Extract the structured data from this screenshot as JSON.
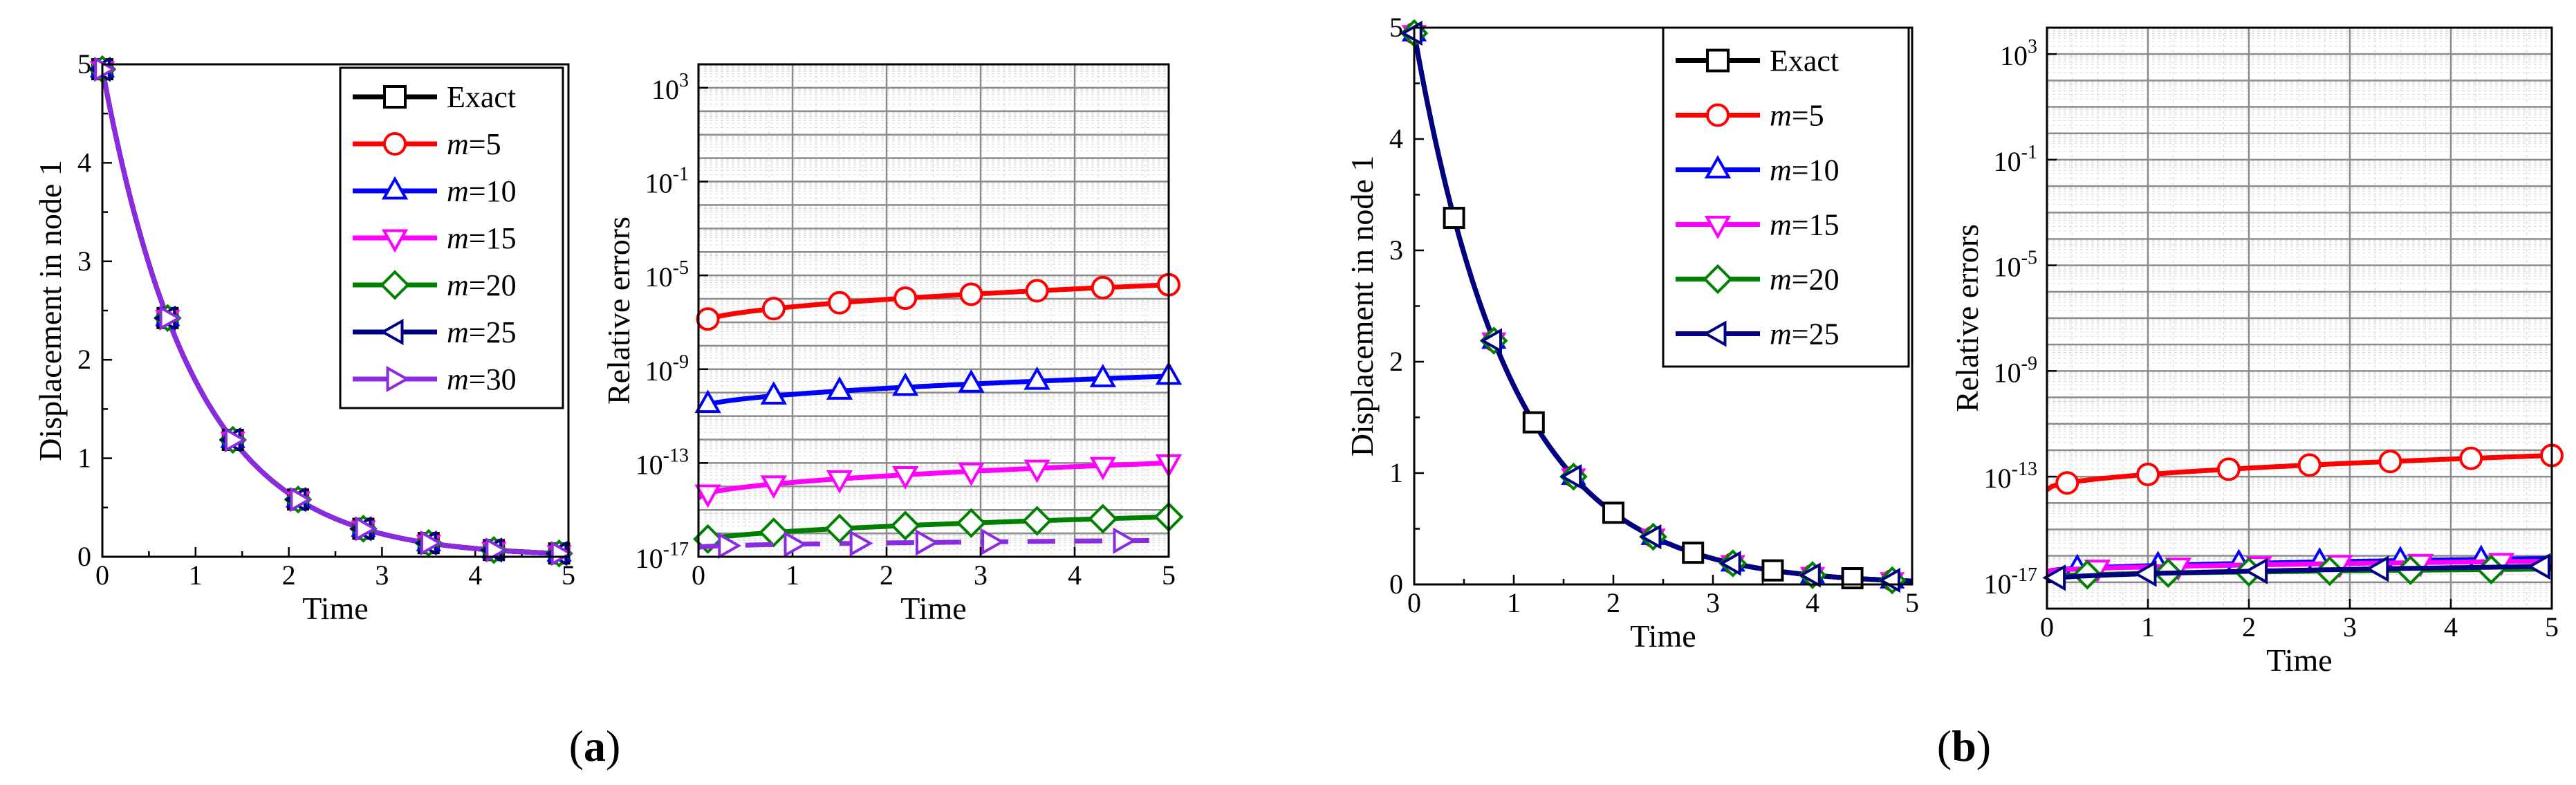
{
  "panels": [
    {
      "label_prefix": "(",
      "label_letter": "a",
      "label_suffix": ")",
      "displacement_chart": {
        "type": "line",
        "title": "",
        "xlabel": "Time",
        "ylabel": "Displacement in node 1",
        "xlim": [
          0,
          5
        ],
        "ylim": [
          0,
          5
        ],
        "xticks": [
          0,
          1,
          2,
          3,
          4,
          5
        ],
        "yticks": [
          0,
          1,
          2,
          3,
          4,
          5
        ],
        "legend_position": "top-right",
        "curve": "4.95*exp(-1.02*t)",
        "series": [
          {
            "name": "Exact",
            "color": "#000000",
            "marker": "square",
            "marker_x": [
              0,
              0.7,
              1.4,
              2.1,
              2.8,
              3.5,
              4.2,
              4.9
            ]
          },
          {
            "name": "m=5",
            "color": "#ff0000",
            "marker": "circle",
            "marker_x": [
              0,
              0.7,
              1.4,
              2.1,
              2.8,
              3.5,
              4.2,
              4.9
            ]
          },
          {
            "name": "m=10",
            "color": "#0000ff",
            "marker": "triangle-up",
            "marker_x": [
              0,
              0.7,
              1.4,
              2.1,
              2.8,
              3.5,
              4.2,
              4.9
            ]
          },
          {
            "name": "m=15",
            "color": "#ff00ff",
            "marker": "triangle-down",
            "marker_x": [
              0,
              0.7,
              1.4,
              2.1,
              2.8,
              3.5,
              4.2,
              4.9
            ]
          },
          {
            "name": "m=20",
            "color": "#008000",
            "marker": "diamond",
            "marker_x": [
              0,
              0.7,
              1.4,
              2.1,
              2.8,
              3.5,
              4.2,
              4.9
            ]
          },
          {
            "name": "m=25",
            "color": "#000080",
            "marker": "triangle-left",
            "marker_x": [
              0,
              0.7,
              1.4,
              2.1,
              2.8,
              3.5,
              4.2,
              4.9
            ]
          },
          {
            "name": "m=30",
            "color": "#8a2be2",
            "marker": "triangle-right",
            "marker_x": [
              0,
              0.7,
              1.4,
              2.1,
              2.8,
              3.5,
              4.2,
              4.9
            ]
          }
        ]
      },
      "error_chart": {
        "type": "line",
        "title": "",
        "xlabel": "Time",
        "ylabel": "Relative errors",
        "yscale": "log",
        "xlim": [
          0,
          5
        ],
        "ylim_exponent": [
          -17,
          4
        ],
        "xticks": [
          0,
          1,
          2,
          3,
          4,
          5
        ],
        "yticks_exponent": [
          -17,
          -13,
          -9,
          -5,
          -1,
          3
        ],
        "series": [
          {
            "name": "m=5",
            "color": "#ff0000",
            "marker": "circle",
            "exp_start": -7.1,
            "exp_end": -5.4,
            "marker_x": [
              0.1,
              0.8,
              1.5,
              2.2,
              2.9,
              3.6,
              4.3,
              5.0
            ],
            "style": "solid"
          },
          {
            "name": "m=10",
            "color": "#0000ff",
            "marker": "triangle-up",
            "exp_start": -10.7,
            "exp_end": -9.3,
            "marker_x": [
              0.1,
              0.8,
              1.5,
              2.2,
              2.9,
              3.6,
              4.3,
              5.0
            ],
            "style": "solid"
          },
          {
            "name": "m=15",
            "color": "#ff00ff",
            "marker": "triangle-down",
            "exp_start": -14.5,
            "exp_end": -13.0,
            "marker_x": [
              0.1,
              0.8,
              1.5,
              2.2,
              2.9,
              3.6,
              4.3,
              5.0
            ],
            "style": "solid"
          },
          {
            "name": "m=20",
            "color": "#008000",
            "marker": "diamond",
            "exp_start": -16.4,
            "exp_end": -15.3,
            "marker_x": [
              0.1,
              0.8,
              1.5,
              2.2,
              2.9,
              3.6,
              4.3,
              5.0
            ],
            "style": "solid"
          },
          {
            "name": "m=30",
            "color": "#8a2be2",
            "marker": "triangle-right",
            "exp_start": -16.6,
            "exp_end": -16.3,
            "marker_x": [
              0.3,
              1.0,
              1.7,
              2.4,
              3.1,
              4.5
            ],
            "style": "dashed"
          }
        ]
      }
    },
    {
      "label_prefix": "(",
      "label_letter": "b",
      "label_suffix": ")",
      "displacement_chart": {
        "type": "line",
        "title": "",
        "xlabel": "Time",
        "ylabel": "Displacement in node 1",
        "xlim": [
          0,
          5
        ],
        "ylim": [
          0,
          5
        ],
        "xticks": [
          0,
          1,
          2,
          3,
          4,
          5
        ],
        "yticks": [
          0,
          1,
          2,
          3,
          4,
          5
        ],
        "legend_position": "top-right",
        "curve": "4.95*exp(-1.02*t)",
        "series": [
          {
            "name": "Exact",
            "color": "#000000",
            "marker": "square",
            "marker_x": [
              0.4,
              1.2,
              2.0,
              2.8,
              3.6,
              4.4
            ]
          },
          {
            "name": "m=5",
            "color": "#ff0000",
            "marker": "circle",
            "marker_x": [
              0,
              0.8,
              1.6,
              2.4,
              3.2,
              4.0,
              4.8
            ]
          },
          {
            "name": "m=10",
            "color": "#0000ff",
            "marker": "triangle-up",
            "marker_x": [
              0,
              0.8,
              1.6,
              2.4,
              3.2,
              4.0,
              4.8
            ]
          },
          {
            "name": "m=15",
            "color": "#ff00ff",
            "marker": "triangle-down",
            "marker_x": [
              0,
              0.8,
              1.6,
              2.4,
              3.2,
              4.0,
              4.8
            ]
          },
          {
            "name": "m=20",
            "color": "#008000",
            "marker": "diamond",
            "marker_x": [
              0,
              0.8,
              1.6,
              2.4,
              3.2,
              4.0,
              4.8
            ]
          },
          {
            "name": "m=25",
            "color": "#000080",
            "marker": "triangle-left",
            "marker_x": [
              0,
              0.8,
              1.6,
              2.4,
              3.2,
              4.0,
              4.8
            ]
          }
        ]
      },
      "error_chart": {
        "type": "line",
        "title": "",
        "xlabel": "Time",
        "ylabel": "Relative errors",
        "yscale": "log",
        "xlim": [
          0,
          5
        ],
        "ylim_exponent": [
          -18,
          4
        ],
        "xticks": [
          0,
          1,
          2,
          3,
          4,
          5
        ],
        "yticks_exponent": [
          -17,
          -13,
          -9,
          -5,
          -1,
          3
        ],
        "series": [
          {
            "name": "m=5",
            "color": "#ff0000",
            "marker": "circle",
            "exp_start": -13.5,
            "exp_end": -12.2,
            "marker_x": [
              0.2,
              1.0,
              1.8,
              2.6,
              3.4,
              4.2,
              5.0
            ],
            "style": "solid"
          },
          {
            "name": "m=10",
            "color": "#0000ff",
            "marker": "triangle-up",
            "exp_start": -16.6,
            "exp_end": -16.1,
            "marker_x": [
              0.3,
              1.1,
              1.9,
              2.7,
              3.5,
              4.3
            ],
            "style": "solid"
          },
          {
            "name": "m=15",
            "color": "#ff00ff",
            "marker": "triangle-down",
            "exp_start": -16.6,
            "exp_end": -16.2,
            "marker_x": [
              0.5,
              1.3,
              2.1,
              2.9,
              3.7,
              4.5
            ],
            "style": "solid"
          },
          {
            "name": "m=20",
            "color": "#008000",
            "marker": "diamond",
            "exp_start": -16.8,
            "exp_end": -16.5,
            "marker_x": [
              0.4,
              1.2,
              2.0,
              2.8,
              3.6,
              4.4
            ],
            "style": "solid"
          },
          {
            "name": "m=25",
            "color": "#000080",
            "marker": "triangle-left",
            "exp_start": -16.9,
            "exp_end": -16.4,
            "marker_x": [
              0.1,
              1.0,
              2.1,
              3.3,
              4.9
            ],
            "style": "solid"
          }
        ]
      }
    }
  ]
}
